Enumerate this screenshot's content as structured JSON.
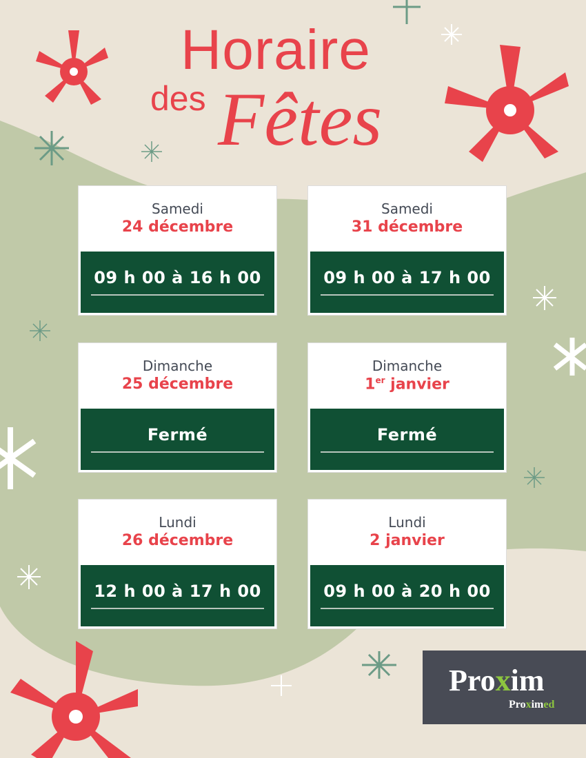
{
  "title": {
    "line1": "Horaire",
    "line2a": "des",
    "line2b": "Fêtes"
  },
  "colors": {
    "background": "#ebe4d7",
    "blob": "#c0c9a8",
    "accent": "#e8434b",
    "card_green": "#105034",
    "logo_bg": "#484b55",
    "logo_green": "#8dc63f"
  },
  "cards": [
    {
      "day": "Samedi",
      "date": "24 décembre",
      "hours": "09 h 00 à 16 h 00"
    },
    {
      "day": "Samedi",
      "date": "31 décembre",
      "hours": "09 h 00 à 17 h 00"
    },
    {
      "day": "Dimanche",
      "date": "25 décembre",
      "hours": "Fermé"
    },
    {
      "day": "Dimanche",
      "date_num": "1",
      "date_sup": "er",
      "date_rest": " janvier",
      "hours": "Fermé"
    },
    {
      "day": "Lundi",
      "date": "26 décembre",
      "hours": "12 h 00 à 17 h 00"
    },
    {
      "day": "Lundi",
      "date": "2 janvier",
      "hours": "09 h 00 à 20 h 00"
    }
  ],
  "logo": {
    "main_a": "Pro",
    "main_x": "x",
    "main_b": "im",
    "sub_a": "Pro",
    "sub_x": "x",
    "sub_b": "im",
    "sub_c": "ed"
  }
}
